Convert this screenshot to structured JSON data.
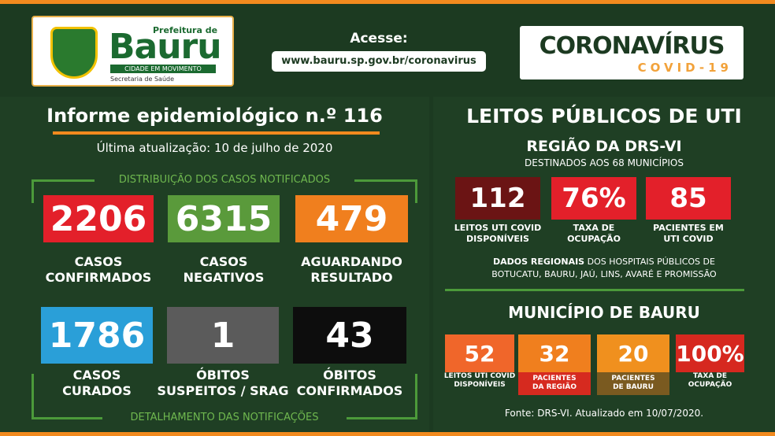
{
  "header": {
    "logo": {
      "prefeitura": "Prefeitura de",
      "city": "Bauru",
      "slogan": "CIDADE EM MOVIMENTO",
      "dept": "Secretaria de Saúde"
    },
    "access": {
      "label": "Acesse:",
      "url": "www.bauru.sp.gov.br/coronavirus"
    },
    "badge": {
      "title": "CORONAVÍRUS",
      "subtitle": "COVID-19"
    }
  },
  "report": {
    "title": "Informe epidemiológico n.º 116",
    "updated": "Última atualização: 10 de julho de 2020",
    "top_label": "DISTRIBUIÇÃO DOS CASOS NOTIFICADOS",
    "bottom_label": "DETALHAMENTO DAS NOTIFICAÇÕES",
    "cards": [
      {
        "value": 2206,
        "lines": [
          "CASOS",
          "CONFIRMADOS"
        ]
      },
      {
        "value": 6315,
        "lines": [
          "CASOS",
          "NEGATIVOS"
        ]
      },
      {
        "value": 479,
        "lines": [
          "AGUARDANDO",
          "RESULTADO"
        ]
      },
      {
        "value": 1786,
        "lines": [
          "CASOS",
          "CURADOS"
        ]
      },
      {
        "value": 1,
        "lines": [
          "ÓBITOS",
          "SUSPEITOS / SRAG"
        ]
      },
      {
        "value": 43,
        "lines": [
          "ÓBITOS",
          "CONFIRMADOS"
        ]
      }
    ]
  },
  "uti": {
    "title": "LEITOS PÚBLICOS DE UTI",
    "region": "REGIÃO DA DRS-VI",
    "subtitle": "DESTINADOS AOS 68 MUNICÍPIOS",
    "cards": [
      {
        "value": 112,
        "lines": [
          "LEITOS UTI COVID",
          "DISPONÍVEIS"
        ]
      },
      {
        "value": "76%",
        "lines": [
          "TAXA DE",
          "OCUPAÇÃO"
        ]
      },
      {
        "value": 85,
        "lines": [
          "PACIENTES EM",
          "UTI COVID"
        ]
      }
    ],
    "note_bold": "DADOS REGIONAIS",
    "note": "DOS HOSPITAIS PÚBLICOS DE",
    "note2": "BOTUCATU, BAURU, JAÚ, LINS, AVARÉ E PROMISSÃO"
  },
  "municipio": {
    "title": "MUNICÍPIO DE BAURU",
    "cards": [
      {
        "value": 52,
        "lines": [
          "LEITOS UTI COVID",
          "DISPONÍVEIS"
        ]
      },
      {
        "value": 32,
        "lines": [
          "PACIENTES",
          "DA REGIÃO"
        ]
      },
      {
        "value": 20,
        "lines": [
          "PACIENTES",
          "DE BAURU"
        ]
      },
      {
        "value": "100%",
        "lines": [
          "TAXA DE",
          "OCUPAÇÃO"
        ]
      }
    ],
    "source": "Fonte: DRS-VI. Atualizado em 10/07/2020."
  }
}
